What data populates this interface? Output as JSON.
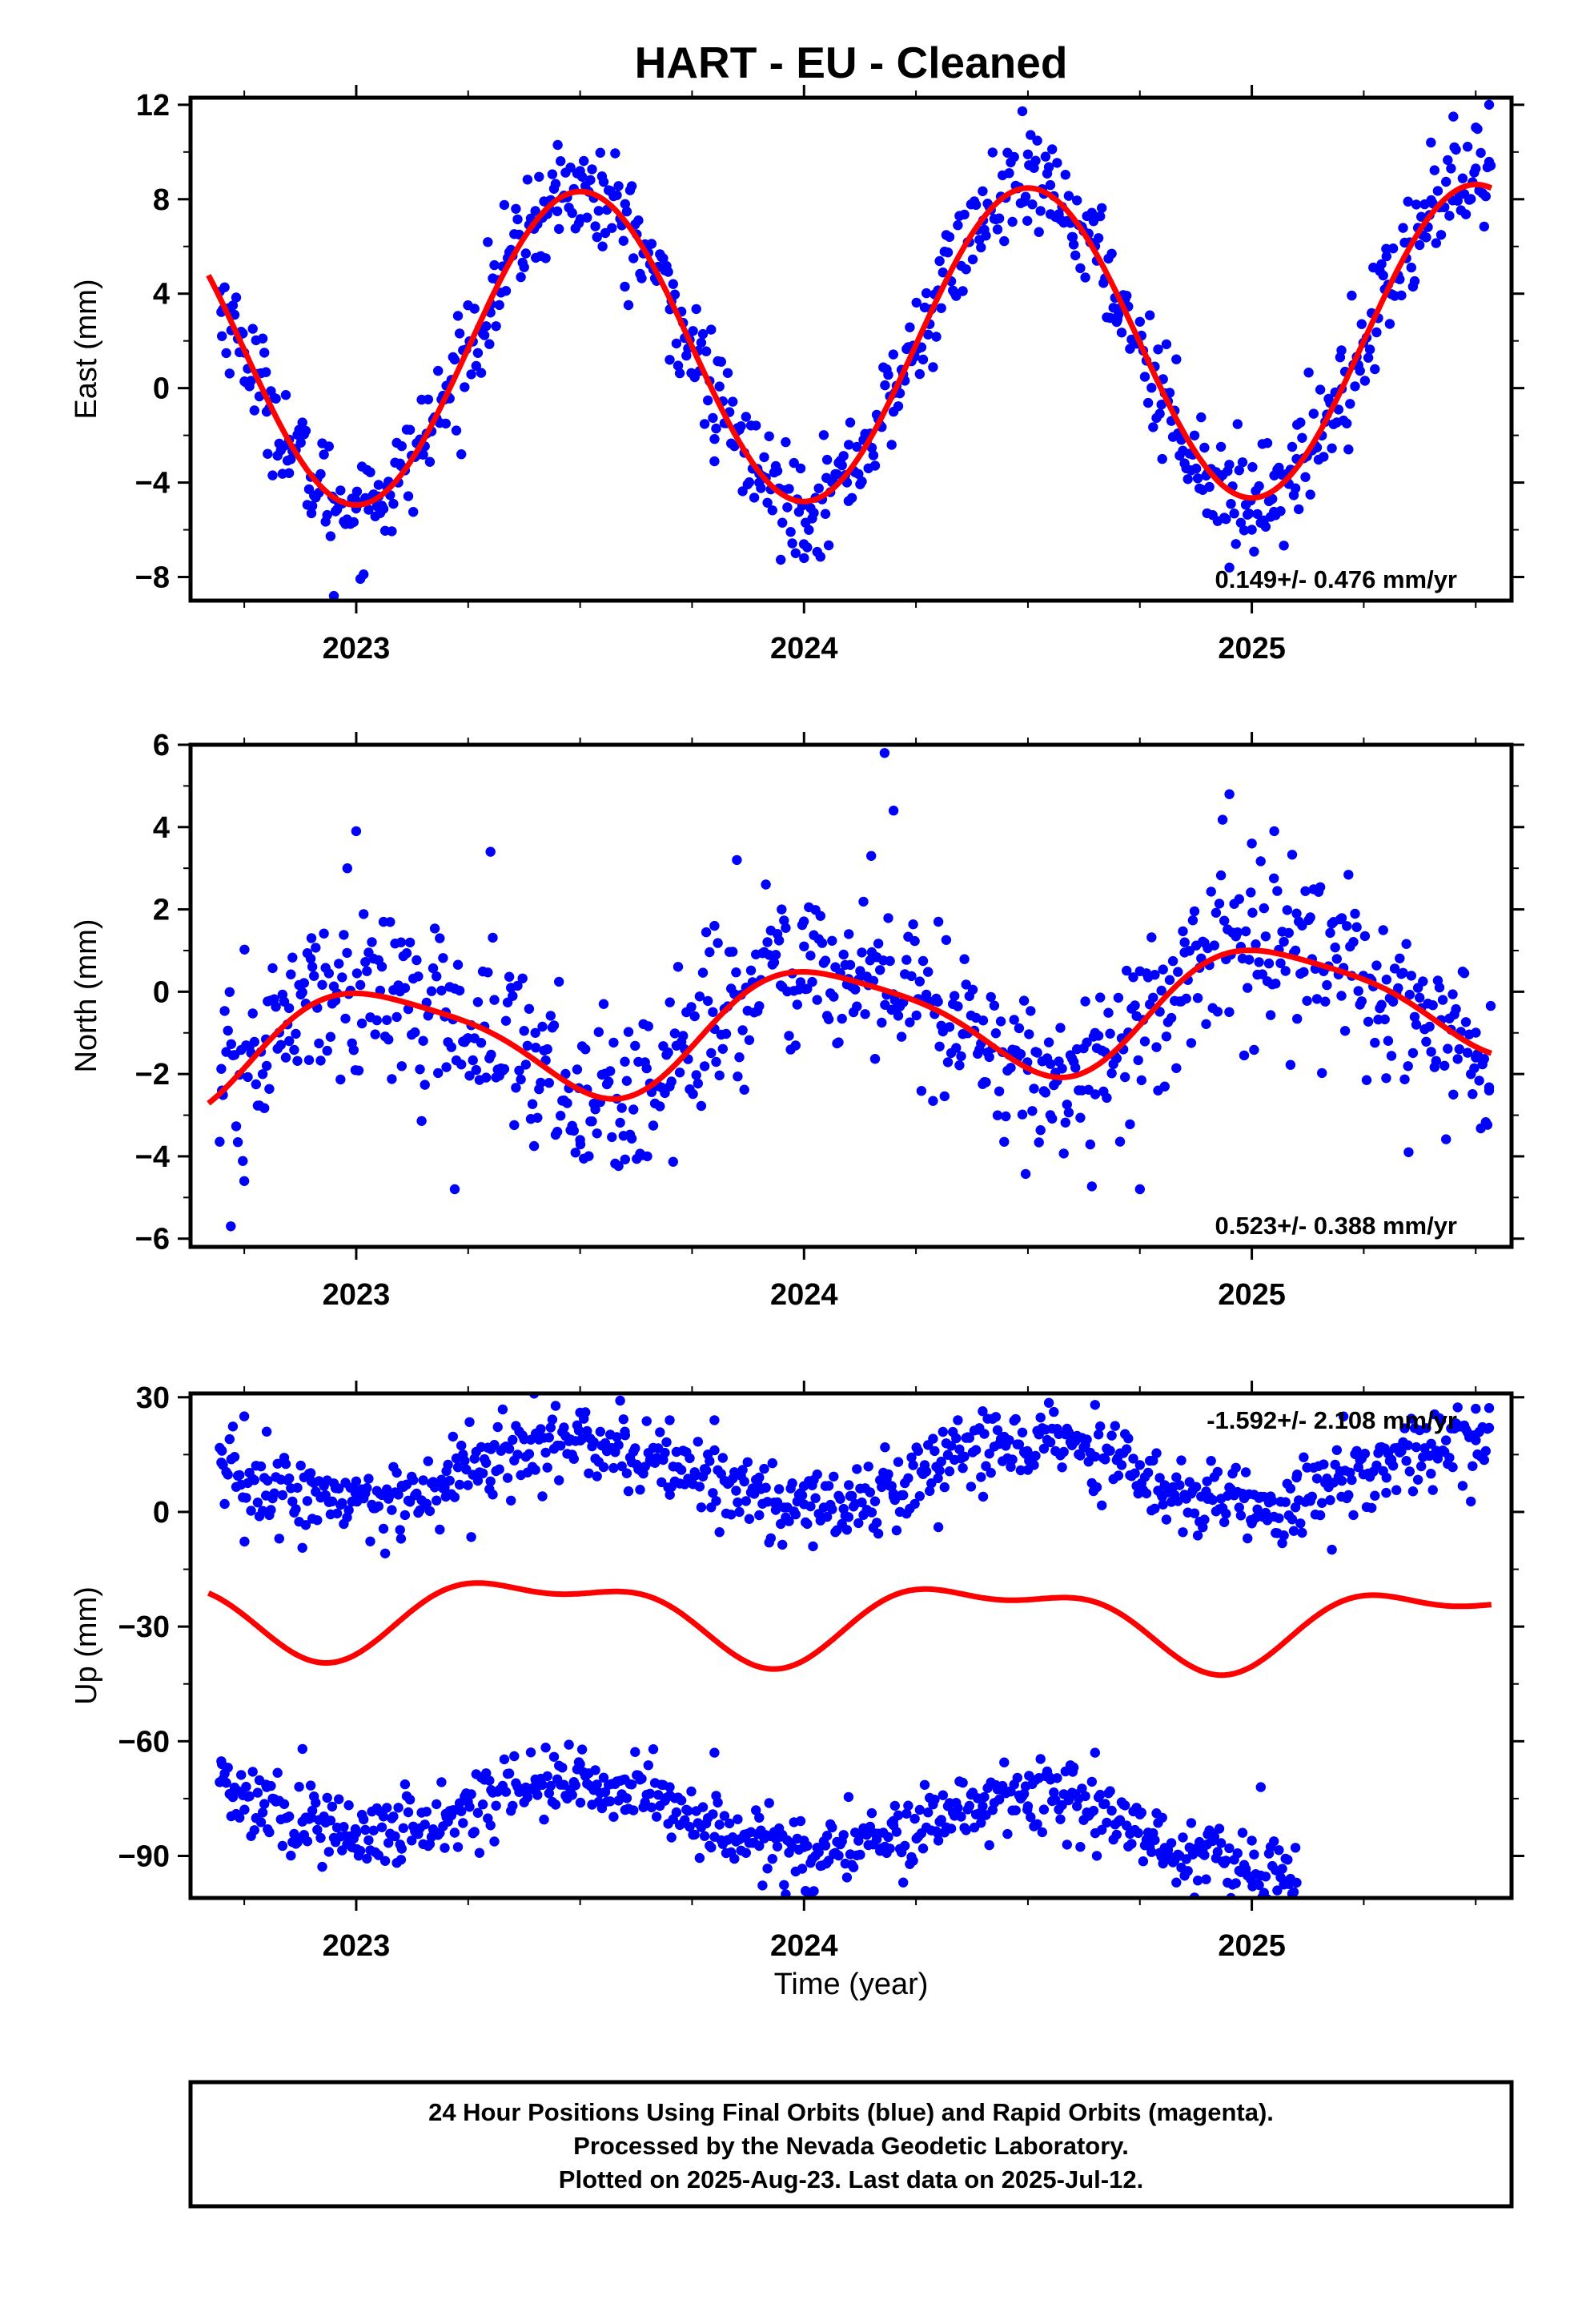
{
  "title": "HART  - EU - Cleaned",
  "xlabel": "Time (year)",
  "colors": {
    "points": "#0000ff",
    "fit": "#ff0000",
    "frame": "#000000"
  },
  "chart_data": [
    {
      "type": "scatter",
      "name": "east",
      "ylabel": "East (mm)",
      "rate": "0.149+/- 0.476 mm/yr",
      "rate_position": "bottom-right",
      "xlim": [
        2022.63,
        2025.58
      ],
      "ylim": [
        -9.0,
        12.3
      ],
      "yticks": [
        -8,
        -4,
        0,
        4,
        8,
        12
      ],
      "ytick_labels": [
        "−8",
        "−4",
        "0",
        "4",
        "8",
        "12"
      ],
      "xticks": [
        2023,
        2024,
        2025
      ],
      "xtick_labels": [
        "2023",
        "2024",
        "2025"
      ],
      "fit": {
        "offset": 1.8,
        "trend": 0.149,
        "annual_amp": 6.6,
        "annual_peak": 2023.5,
        "semi_cos": 0.0,
        "semi_sin": 0.0
      },
      "noise": 1.1,
      "scatter_positions": [
        {
          "x": 2022.7,
          "y": 2.2
        },
        {
          "x": 2022.75,
          "y": 1.5
        },
        {
          "x": 2022.8,
          "y": -1.0
        },
        {
          "x": 2022.85,
          "y": -3.6
        },
        {
          "x": 2022.9,
          "y": -5.3
        },
        {
          "x": 2022.95,
          "y": -8.8
        },
        {
          "x": 2023.0,
          "y": -5.1
        },
        {
          "x": 2023.05,
          "y": -4.1
        },
        {
          "x": 2023.1,
          "y": -3.3
        },
        {
          "x": 2023.2,
          "y": -1.5
        },
        {
          "x": 2023.3,
          "y": 3.2
        },
        {
          "x": 2023.4,
          "y": 7.5
        },
        {
          "x": 2023.45,
          "y": 10.3
        },
        {
          "x": 2023.5,
          "y": 9.2
        },
        {
          "x": 2023.55,
          "y": 6.0
        },
        {
          "x": 2023.6,
          "y": 4.3
        },
        {
          "x": 2023.7,
          "y": 1.2
        },
        {
          "x": 2023.8,
          "y": -3.1
        },
        {
          "x": 2023.9,
          "y": -4.0
        },
        {
          "x": 2024.0,
          "y": -7.2
        },
        {
          "x": 2024.05,
          "y": -3.8
        },
        {
          "x": 2024.1,
          "y": -2.4
        },
        {
          "x": 2024.2,
          "y": -1.0
        },
        {
          "x": 2024.3,
          "y": 4.1
        },
        {
          "x": 2024.4,
          "y": 7.1
        },
        {
          "x": 2024.5,
          "y": 9.9
        },
        {
          "x": 2024.55,
          "y": 8.6
        },
        {
          "x": 2024.6,
          "y": 6.4
        },
        {
          "x": 2024.7,
          "y": 2.9
        },
        {
          "x": 2024.8,
          "y": -3.0
        },
        {
          "x": 2024.9,
          "y": -5.3
        },
        {
          "x": 2024.95,
          "y": -7.6
        },
        {
          "x": 2025.0,
          "y": -6.0
        },
        {
          "x": 2025.05,
          "y": -3.7
        },
        {
          "x": 2025.1,
          "y": -3.0
        },
        {
          "x": 2025.2,
          "y": 1.6
        },
        {
          "x": 2025.3,
          "y": 5.9
        },
        {
          "x": 2025.4,
          "y": 10.4
        },
        {
          "x": 2025.45,
          "y": 11.5
        },
        {
          "x": 2025.5,
          "y": 9.3
        },
        {
          "x": 2025.53,
          "y": 12.0
        }
      ]
    },
    {
      "type": "scatter",
      "name": "north",
      "ylabel": "North (mm)",
      "rate": "0.523+/- 0.388 mm/yr",
      "rate_position": "bottom-right",
      "xlim": [
        2022.63,
        2025.58
      ],
      "ylim": [
        -6.2,
        6.0
      ],
      "yticks": [
        -6,
        -4,
        -2,
        0,
        2,
        4,
        6
      ],
      "ytick_labels": [
        "−6",
        "−4",
        "−2",
        "0",
        "2",
        "4",
        "6"
      ],
      "xticks": [
        2023,
        2024,
        2025
      ],
      "xtick_labels": [
        "2023",
        "2024",
        "2025"
      ],
      "fit": {
        "offset": -0.8,
        "trend": 0.523,
        "annual_amp": 1.37,
        "annual_peak": 2023.05,
        "semi_cos": -0.02,
        "semi_sin": -0.27
      },
      "noise": 1.0,
      "scatter_positions": [
        {
          "x": 2022.7,
          "y": -2.4
        },
        {
          "x": 2022.72,
          "y": -5.7
        },
        {
          "x": 2022.75,
          "y": -4.6
        },
        {
          "x": 2022.8,
          "y": -1.8
        },
        {
          "x": 2022.85,
          "y": -0.4
        },
        {
          "x": 2022.9,
          "y": 1.3
        },
        {
          "x": 2022.98,
          "y": 3.0
        },
        {
          "x": 2023.0,
          "y": 3.9
        },
        {
          "x": 2023.1,
          "y": 1.2
        },
        {
          "x": 2023.2,
          "y": -0.5
        },
        {
          "x": 2023.22,
          "y": -4.8
        },
        {
          "x": 2023.3,
          "y": 3.4
        },
        {
          "x": 2023.4,
          "y": -1.0
        },
        {
          "x": 2023.5,
          "y": -3.6
        },
        {
          "x": 2023.6,
          "y": -1.7
        },
        {
          "x": 2023.65,
          "y": -4.0
        },
        {
          "x": 2023.7,
          "y": -2.3
        },
        {
          "x": 2023.8,
          "y": 1.6
        },
        {
          "x": 2023.85,
          "y": 3.2
        },
        {
          "x": 2023.95,
          "y": 2.0
        },
        {
          "x": 2024.0,
          "y": 1.1
        },
        {
          "x": 2024.1,
          "y": 1.4
        },
        {
          "x": 2024.15,
          "y": 3.3
        },
        {
          "x": 2024.18,
          "y": 5.8
        },
        {
          "x": 2024.2,
          "y": 4.4
        },
        {
          "x": 2024.3,
          "y": 1.7
        },
        {
          "x": 2024.4,
          "y": -0.7
        },
        {
          "x": 2024.5,
          "y": -1.9
        },
        {
          "x": 2024.55,
          "y": -3.0
        },
        {
          "x": 2024.65,
          "y": -1.0
        },
        {
          "x": 2024.75,
          "y": -4.8
        },
        {
          "x": 2024.85,
          "y": 1.2
        },
        {
          "x": 2024.95,
          "y": 4.8
        },
        {
          "x": 2025.0,
          "y": 3.6
        },
        {
          "x": 2025.05,
          "y": 3.9
        },
        {
          "x": 2025.1,
          "y": 1.9
        },
        {
          "x": 2025.2,
          "y": -0.1
        },
        {
          "x": 2025.3,
          "y": -2.1
        },
        {
          "x": 2025.35,
          "y": -3.9
        },
        {
          "x": 2025.45,
          "y": -2.5
        },
        {
          "x": 2025.5,
          "y": -1.6
        },
        {
          "x": 2025.53,
          "y": -2.4
        }
      ]
    },
    {
      "type": "scatter",
      "name": "up",
      "ylabel": "Up (mm)",
      "rate": "-1.592+/- 2.108 mm/yr",
      "rate_position": "top-right",
      "xlim": [
        2022.63,
        2025.58
      ],
      "ylim": [
        -101,
        31
      ],
      "yticks": [
        -90,
        -60,
        -30,
        0,
        30
      ],
      "ytick_labels": [
        "−90",
        "−60",
        "−30",
        "0",
        "30"
      ],
      "xticks": [
        2023,
        2024,
        2025
      ],
      "xtick_labels": [
        "2023",
        "2024",
        "2025"
      ],
      "fit": {
        "offset": -27.5,
        "trend": -1.592,
        "annual_amp": 9.5,
        "annual_peak": 2023.42,
        "semi_cos": -3.0,
        "semi_sin": 3.0
      },
      "noise": 5.0,
      "scatter_positions": [
        {
          "x": 2022.7,
          "y": 16
        },
        {
          "x": 2022.75,
          "y": 25
        },
        {
          "x": 2022.8,
          "y": 21
        },
        {
          "x": 2022.9,
          "y": 8
        },
        {
          "x": 2023.0,
          "y": 8
        },
        {
          "x": 2023.1,
          "y": -7
        },
        {
          "x": 2023.2,
          "y": 4
        },
        {
          "x": 2023.3,
          "y": 8
        },
        {
          "x": 2023.4,
          "y": 11
        },
        {
          "x": 2023.5,
          "y": 26
        },
        {
          "x": 2023.6,
          "y": 21
        },
        {
          "x": 2023.7,
          "y": 24
        },
        {
          "x": 2023.8,
          "y": 24
        },
        {
          "x": 2023.9,
          "y": 9
        },
        {
          "x": 2024.0,
          "y": 2
        },
        {
          "x": 2024.02,
          "y": -9
        },
        {
          "x": 2024.1,
          "y": 7
        },
        {
          "x": 2024.2,
          "y": 4
        },
        {
          "x": 2024.3,
          "y": -4
        },
        {
          "x": 2024.4,
          "y": 4
        },
        {
          "x": 2024.5,
          "y": 11
        },
        {
          "x": 2024.6,
          "y": 18
        },
        {
          "x": 2024.65,
          "y": 28
        },
        {
          "x": 2024.7,
          "y": 14
        },
        {
          "x": 2024.8,
          "y": 4
        },
        {
          "x": 2024.9,
          "y": 8
        },
        {
          "x": 2025.0,
          "y": -3
        },
        {
          "x": 2025.1,
          "y": 9
        },
        {
          "x": 2025.2,
          "y": 4
        },
        {
          "x": 2025.3,
          "y": 5
        },
        {
          "x": 2025.4,
          "y": 10
        },
        {
          "x": 2025.5,
          "y": 27
        },
        {
          "x": 2025.53,
          "y": 22
        },
        {
          "x": 2022.7,
          "y": -66
        },
        {
          "x": 2022.8,
          "y": -72
        },
        {
          "x": 2022.88,
          "y": -62
        },
        {
          "x": 2022.9,
          "y": -80
        },
        {
          "x": 2023.0,
          "y": -84
        },
        {
          "x": 2023.1,
          "y": -91
        },
        {
          "x": 2023.2,
          "y": -79
        },
        {
          "x": 2023.3,
          "y": -82
        },
        {
          "x": 2023.4,
          "y": -70
        },
        {
          "x": 2023.5,
          "y": -66
        },
        {
          "x": 2023.6,
          "y": -70
        },
        {
          "x": 2023.7,
          "y": -72
        },
        {
          "x": 2023.8,
          "y": -63
        },
        {
          "x": 2023.9,
          "y": -80
        },
        {
          "x": 2024.0,
          "y": -86
        },
        {
          "x": 2024.05,
          "y": -92
        },
        {
          "x": 2024.2,
          "y": -82
        },
        {
          "x": 2024.3,
          "y": -86
        },
        {
          "x": 2024.4,
          "y": -79
        },
        {
          "x": 2024.5,
          "y": -77
        },
        {
          "x": 2024.6,
          "y": -68
        },
        {
          "x": 2024.65,
          "y": -63
        },
        {
          "x": 2024.8,
          "y": -80
        },
        {
          "x": 2024.9,
          "y": -87
        },
        {
          "x": 2025.0,
          "y": -86
        },
        {
          "x": 2025.02,
          "y": -72
        },
        {
          "x": 2025.08,
          "y": -91
        },
        {
          "x": 2025.1,
          "y": -97
        }
      ]
    }
  ],
  "footer": {
    "line1": "24 Hour Positions Using Final Orbits (blue) and Rapid Orbits (magenta).",
    "line2": "Processed by the Nevada Geodetic Laboratory.",
    "line3": "Plotted on 2025-Aug-23. Last data on 2025-Jul-12."
  }
}
